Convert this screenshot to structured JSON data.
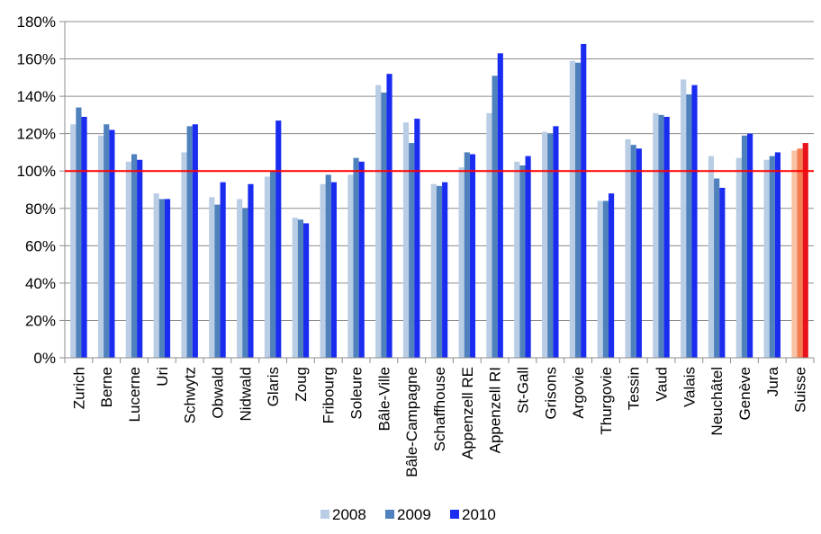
{
  "chart_data": {
    "type": "bar",
    "title": "",
    "xlabel": "",
    "ylabel": "",
    "ylim": [
      0,
      180
    ],
    "y_ticks": [
      "0%",
      "20%",
      "40%",
      "60%",
      "80%",
      "100%",
      "120%",
      "140%",
      "160%",
      "180%"
    ],
    "grid": true,
    "reference_line": {
      "value": 100,
      "color": "#ff0000"
    },
    "legend_position": "bottom",
    "categories": [
      "Zurich",
      "Berne",
      "Lucerne",
      "Uri",
      "Schwytz",
      "Obwald",
      "Nidwald",
      "Glaris",
      "Zoug",
      "Fribourg",
      "Soleure",
      "Bâle-Ville",
      "Bâle-Campagne",
      "Schaffhouse",
      "Appenzell RE",
      "Appenzell RI",
      "St-Gall",
      "Grisons",
      "Argovie",
      "Thurgovie",
      "Tessin",
      "Vaud",
      "Valais",
      "Neuchâtel",
      "Genève",
      "Jura",
      "Suisse"
    ],
    "series": [
      {
        "name": "2008",
        "color": "#b9cde5",
        "values": [
          125,
          119,
          105,
          88,
          110,
          86,
          85,
          97,
          75,
          93,
          98,
          146,
          126,
          93,
          102,
          131,
          105,
          121,
          159,
          84,
          117,
          131,
          149,
          108,
          107,
          106,
          111
        ]
      },
      {
        "name": "2009",
        "color": "#4f81bd",
        "values": [
          134,
          125,
          109,
          85,
          124,
          82,
          80,
          100,
          74,
          98,
          107,
          142,
          115,
          92,
          110,
          151,
          103,
          120,
          158,
          84,
          114,
          130,
          141,
          96,
          119,
          108,
          112
        ]
      },
      {
        "name": "2010",
        "color": "#1a2cf0",
        "values": [
          129,
          122,
          106,
          85,
          125,
          94,
          93,
          127,
          72,
          94,
          105,
          152,
          128,
          94,
          109,
          163,
          108,
          124,
          168,
          88,
          112,
          129,
          146,
          91,
          120,
          110,
          115
        ]
      }
    ],
    "highlight": {
      "category": "Suisse",
      "colors": [
        "#f9c3a5",
        "#f47d52",
        "#e8121c"
      ]
    }
  }
}
